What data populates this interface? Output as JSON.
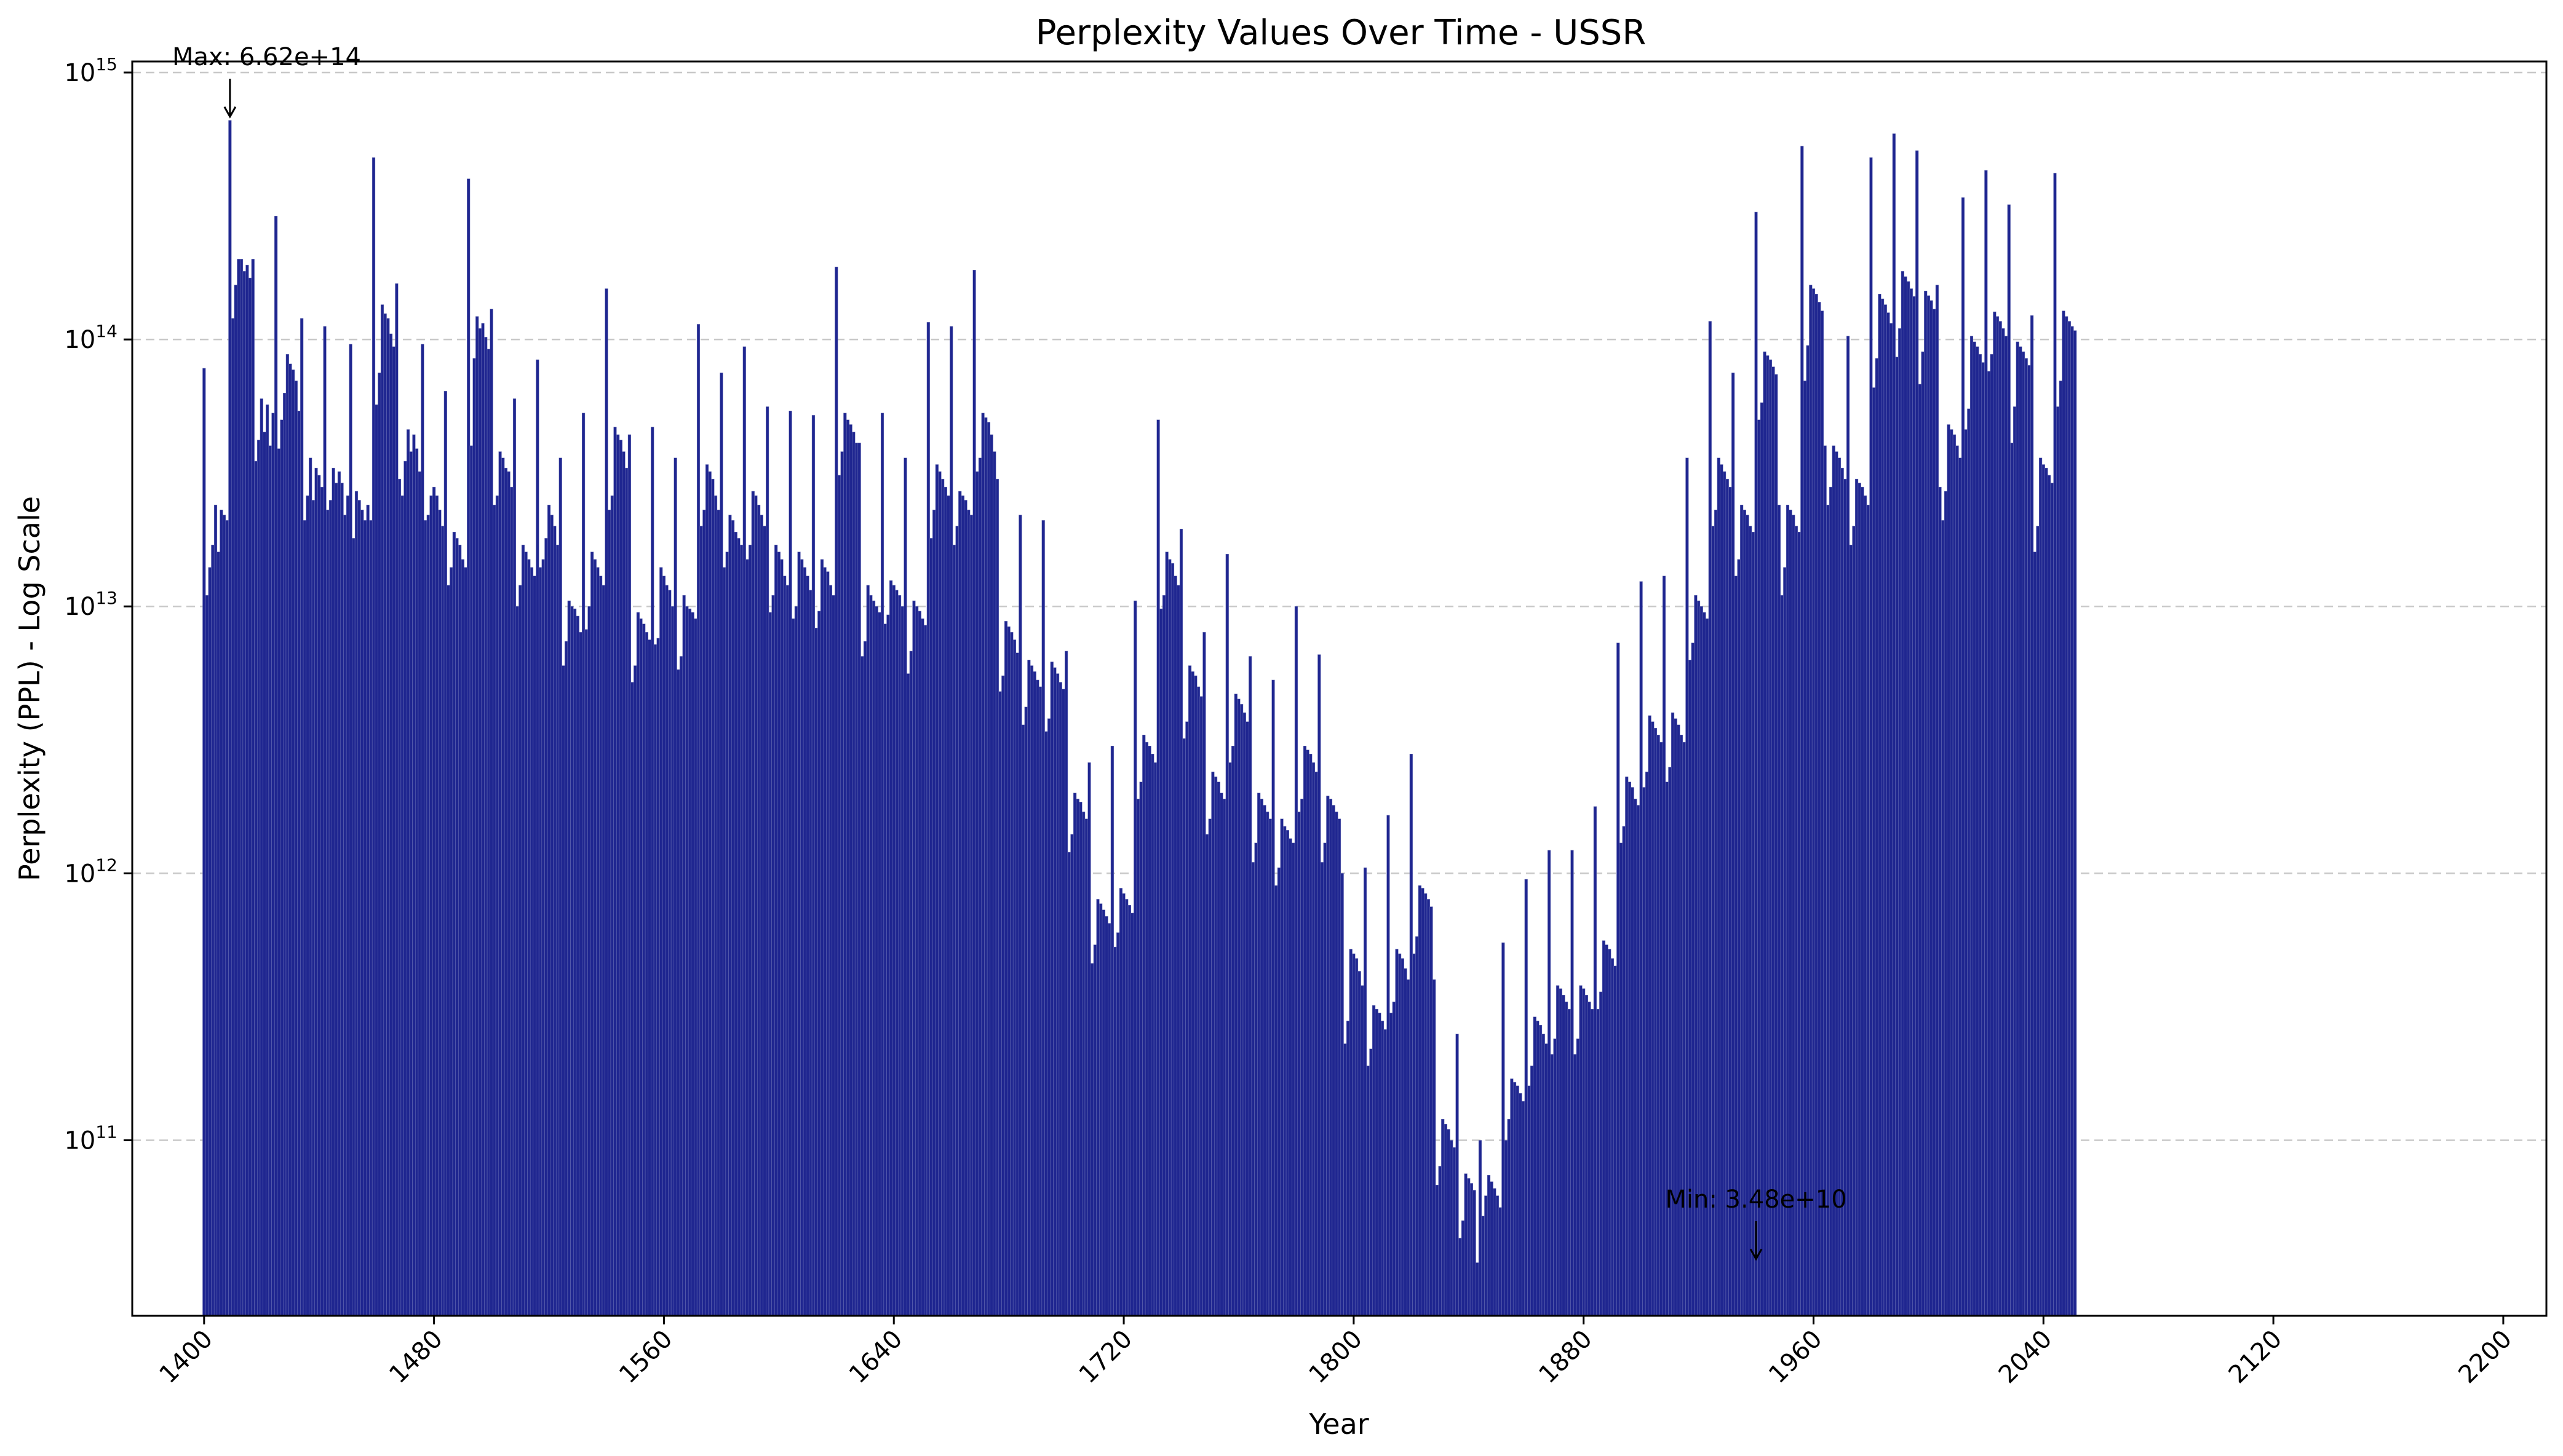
{
  "chart_data": {
    "type": "bar",
    "title": "Perplexity Values Over Time - USSR",
    "xlabel": "Year",
    "ylabel": "Perplexity (PPL) - Log Scale",
    "yscale": "log",
    "ylim": [
      22000000000.0,
      1100000000000000.0
    ],
    "xlim": [
      1375,
      2215
    ],
    "xticks": [
      1400,
      1480,
      1560,
      1640,
      1720,
      1800,
      1880,
      1960,
      2040,
      2120,
      2200
    ],
    "yticks": [
      {
        "value": 100000000000.0,
        "base": "10",
        "exp": "11"
      },
      {
        "value": 1000000000000.0,
        "base": "10",
        "exp": "12"
      },
      {
        "value": 10000000000000.0,
        "base": "10",
        "exp": "13"
      },
      {
        "value": 100000000000000.0,
        "base": "10",
        "exp": "14"
      },
      {
        "value": 1000000000000000.0,
        "base": "10",
        "exp": "15"
      }
    ],
    "grid": "y-dashed",
    "bar_color": "#1f2690",
    "x_start": 1400,
    "x_step": 1,
    "values": [
      78000000000000.0,
      11000000000000.0,
      14000000000000.0,
      17000000000000.0,
      24000000000000.0,
      16000000000000.0,
      23000000000000.0,
      22000000000000.0,
      21000000000000.0,
      662000000000000.0,
      120000000000000.0,
      160000000000000.0,
      200000000000000.0,
      200000000000000.0,
      180000000000000.0,
      190000000000000.0,
      170000000000000.0,
      200000000000000.0,
      35000000000000.0,
      42000000000000.0,
      60000000000000.0,
      45000000000000.0,
      57000000000000.0,
      40000000000000.0,
      53000000000000.0,
      290000000000000.0,
      39000000000000.0,
      50000000000000.0,
      63000000000000.0,
      88000000000000.0,
      81000000000000.0,
      77000000000000.0,
      70000000000000.0,
      54000000000000.0,
      120000000000000.0,
      21000000000000.0,
      26000000000000.0,
      36000000000000.0,
      25000000000000.0,
      33000000000000.0,
      31000000000000.0,
      28000000000000.0,
      112000000000000.0,
      23000000000000.0,
      25000000000000.0,
      33000000000000.0,
      29000000000000.0,
      32000000000000.0,
      29000000000000.0,
      22000000000000.0,
      26000000000000.0,
      96000000000000.0,
      18000000000000.0,
      27000000000000.0,
      25000000000000.0,
      23000000000000.0,
      21000000000000.0,
      24000000000000.0,
      21000000000000.0,
      480000000000000.0,
      57000000000000.0,
      75000000000000.0,
      135000000000000.0,
      125000000000000.0,
      120000000000000.0,
      105000000000000.0,
      94000000000000.0,
      162000000000000.0,
      30000000000000.0,
      26000000000000.0,
      35000000000000.0,
      46000000000000.0,
      38000000000000.0,
      44000000000000.0,
      39000000000000.0,
      32000000000000.0,
      96000000000000.0,
      21000000000000.0,
      22000000000000.0,
      26000000000000.0,
      28000000000000.0,
      26000000000000.0,
      23000000000000.0,
      20000000000000.0,
      64000000000000.0,
      12000000000000.0,
      14000000000000.0,
      19000000000000.0,
      18000000000000.0,
      17000000000000.0,
      15000000000000.0,
      14000000000000.0,
      400000000000000.0,
      40000000000000.0,
      85000000000000.0,
      122000000000000.0,
      110000000000000.0,
      115000000000000.0,
      102000000000000.0,
      92000000000000.0,
      130000000000000.0,
      24000000000000.0,
      26000000000000.0,
      38000000000000.0,
      36000000000000.0,
      33000000000000.0,
      32000000000000.0,
      28000000000000.0,
      60000000000000.0,
      10000000000000.0,
      12000000000000.0,
      17000000000000.0,
      16000000000000.0,
      15000000000000.0,
      14000000000000.0,
      13000000000000.0,
      84000000000000.0,
      14000000000000.0,
      15000000000000.0,
      18000000000000.0,
      24000000000000.0,
      22000000000000.0,
      20000000000000.0,
      17000000000000.0,
      36000000000000.0,
      6000000000000.0,
      7400000000000.0,
      10500000000000.0,
      10000000000000.0,
      9800000000000.0,
      9200000000000.0,
      8000000000000.0,
      53000000000000.0,
      8200000000000.0,
      10000000000000.0,
      16000000000000.0,
      15000000000000.0,
      14000000000000.0,
      13000000000000.0,
      12000000000000.0,
      155000000000000.0,
      23000000000000.0,
      26000000000000.0,
      47000000000000.0,
      44000000000000.0,
      42000000000000.0,
      38000000000000.0,
      33000000000000.0,
      44000000000000.0,
      5200000000000.0,
      6000000000000.0,
      9500000000000.0,
      9000000000000.0,
      8600000000000.0,
      8000000000000.0,
      7500000000000.0,
      47000000000000.0,
      7200000000000.0,
      7600000000000.0,
      14000000000000.0,
      13000000000000.0,
      12000000000000.0,
      11500000000000.0,
      10000000000000.0,
      36000000000000.0,
      5800000000000.0,
      6500000000000.0,
      11000000000000.0,
      10000000000000.0,
      9800000000000.0,
      9500000000000.0,
      9000000000000.0,
      114000000000000.0,
      20000000000000.0,
      23000000000000.0,
      34000000000000.0,
      32000000000000.0,
      30000000000000.0,
      26000000000000.0,
      23000000000000.0,
      75000000000000.0,
      14000000000000.0,
      16000000000000.0,
      22000000000000.0,
      21000000000000.0,
      19000000000000.0,
      18000000000000.0,
      17000000000000.0,
      94000000000000.0,
      15000000000000.0,
      17000000000000.0,
      27000000000000.0,
      26000000000000.0,
      24000000000000.0,
      22000000000000.0,
      20000000000000.0,
      56000000000000.0,
      9500000000000.0,
      11000000000000.0,
      17000000000000.0,
      16000000000000.0,
      15000000000000.0,
      13000000000000.0,
      12000000000000.0,
      54000000000000.0,
      9000000000000.0,
      10000000000000.0,
      16000000000000.0,
      15000000000000.0,
      14000000000000.0,
      13000000000000.0,
      11500000000000.0,
      52000000000000.0,
      8300000000000.0,
      9600000000000.0,
      15000000000000.0,
      14000000000000.0,
      13500000000000.0,
      12000000000000.0,
      11000000000000.0,
      187000000000000.0,
      31000000000000.0,
      38000000000000.0,
      53000000000000.0,
      50000000000000.0,
      48000000000000.0,
      45000000000000.0,
      41000000000000.0,
      41000000000000.0,
      6500000000000.0,
      7400000000000.0,
      12000000000000.0,
      11000000000000.0,
      10500000000000.0,
      10000000000000.0,
      9500000000000.0,
      53000000000000.0,
      8600000000000.0,
      9300000000000.0,
      12500000000000.0,
      12000000000000.0,
      11500000000000.0,
      11000000000000.0,
      10000000000000.0,
      36000000000000.0,
      5600000000000.0,
      6800000000000.0,
      10500000000000.0,
      10000000000000.0,
      9600000000000.0,
      9000000000000.0,
      8500000000000.0,
      116000000000000.0,
      18000000000000.0,
      23000000000000.0,
      34000000000000.0,
      32000000000000.0,
      30000000000000.0,
      28000000000000.0,
      26000000000000.0,
      112000000000000.0,
      17000000000000.0,
      20000000000000.0,
      27000000000000.0,
      26000000000000.0,
      25000000000000.0,
      23000000000000.0,
      22000000000000.0,
      182000000000000.0,
      32000000000000.0,
      36000000000000.0,
      53000000000000.0,
      51000000000000.0,
      49000000000000.0,
      44000000000000.0,
      38000000000000.0,
      30000000000000.0,
      4800000000000.0,
      5500000000000.0,
      8800000000000.0,
      8400000000000.0,
      8000000000000.0,
      7500000000000.0,
      6700000000000.0,
      22000000000000.0,
      3600000000000.0,
      4200000000000.0,
      6300000000000.0,
      6000000000000.0,
      5700000000000.0,
      5300000000000.0,
      5000000000000.0,
      21000000000000.0,
      3400000000000.0,
      3800000000000.0,
      6200000000000.0,
      5900000000000.0,
      5600000000000.0,
      5200000000000.0,
      4900000000000.0,
      6800000000000.0,
      1200000000000.0,
      1400000000000.0,
      2000000000000.0,
      1900000000000.0,
      1850000000000.0,
      1700000000000.0,
      1600000000000.0,
      2600000000000.0,
      460000000000.0,
      540000000000.0,
      800000000000.0,
      770000000000.0,
      730000000000.0,
      690000000000.0,
      650000000000.0,
      3000000000000.0,
      530000000000.0,
      600000000000.0,
      880000000000.0,
      840000000000.0,
      800000000000.0,
      760000000000.0,
      710000000000.0,
      10500000000000.0,
      1900000000000.0,
      2200000000000.0,
      3300000000000.0,
      3100000000000.0,
      3000000000000.0,
      2800000000000.0,
      2600000000000.0,
      50000000000000.0,
      9800000000000.0,
      11000000000000.0,
      16000000000000.0,
      15000000000000.0,
      14500000000000.0,
      13000000000000.0,
      12000000000000.0,
      19500000000000.0,
      3200000000000.0,
      3700000000000.0,
      6000000000000.0,
      5700000000000.0,
      5500000000000.0,
      5000000000000.0,
      4600000000000.0,
      8000000000000.0,
      1400000000000.0,
      1600000000000.0,
      2400000000000.0,
      2300000000000.0,
      2200000000000.0,
      2000000000000.0,
      1900000000000.0,
      15700000000000.0,
      2600000000000.0,
      3000000000000.0,
      4700000000000.0,
      4500000000000.0,
      4300000000000.0,
      4000000000000.0,
      3700000000000.0,
      6500000000000.0,
      1100000000000.0,
      1300000000000.0,
      2000000000000.0,
      1900000000000.0,
      1800000000000.0,
      1700000000000.0,
      1600000000000.0,
      5300000000000.0,
      900000000000.0,
      1050000000000.0,
      1600000000000.0,
      1500000000000.0,
      1450000000000.0,
      1350000000000.0,
      1300000000000.0,
      10000000000000.0,
      1700000000000.0,
      1900000000000.0,
      3000000000000.0,
      2900000000000.0,
      2800000000000.0,
      2600000000000.0,
      2400000000000.0,
      6600000000000.0,
      1100000000000.0,
      1300000000000.0,
      1950000000000.0,
      1900000000000.0,
      1800000000000.0,
      1700000000000.0,
      1600000000000.0,
      1000000000000.0,
      230000000000.0,
      280000000000.0,
      520000000000.0,
      500000000000.0,
      480000000000.0,
      430000000000.0,
      380000000000.0,
      1050000000000.0,
      190000000000.0,
      220000000000.0,
      320000000000.0,
      310000000000.0,
      300000000000.0,
      280000000000.0,
      260000000000.0,
      1650000000000.0,
      300000000000.0,
      330000000000.0,
      520000000000.0,
      500000000000.0,
      480000000000.0,
      440000000000.0,
      400000000000.0,
      2800000000000.0,
      500000000000.0,
      580000000000.0,
      900000000000.0,
      880000000000.0,
      840000000000.0,
      800000000000.0,
      750000000000.0,
      400000000000.0,
      68000000000.0,
      80000000000.0,
      120000000000.0,
      115000000000.0,
      110000000000.0,
      100000000000.0,
      94000000000.0,
      250000000000.0,
      43000000000.0,
      50000000000.0,
      75000000000.0,
      72000000000.0,
      69000000000.0,
      65000000000.0,
      34800000000.0,
      100000000000.0,
      52000000000.0,
      62000000000.0,
      74000000000.0,
      70000000000.0,
      66000000000.0,
      62000000000.0,
      56000000000.0,
      550000000000.0,
      100000000000.0,
      120000000000.0,
      170000000000.0,
      165000000000.0,
      160000000000.0,
      150000000000.0,
      140000000000.0,
      950000000000.0,
      160000000000.0,
      190000000000.0,
      290000000000.0,
      280000000000.0,
      270000000000.0,
      250000000000.0,
      230000000000.0,
      1220000000000.0,
      210000000000.0,
      240000000000.0,
      380000000000.0,
      370000000000.0,
      350000000000.0,
      330000000000.0,
      310000000000.0,
      1220000000000.0,
      210000000000.0,
      240000000000.0,
      380000000000.0,
      370000000000.0,
      350000000000.0,
      330000000000.0,
      310000000000.0,
      1780000000000.0,
      310000000000.0,
      360000000000.0,
      560000000000.0,
      540000000000.0,
      520000000000.0,
      480000000000.0,
      450000000000.0,
      7300000000000.0,
      1300000000000.0,
      1500000000000.0,
      2300000000000.0,
      2200000000000.0,
      2100000000000.0,
      1900000000000.0,
      1800000000000.0,
      12400000000000.0,
      2100000000000.0,
      2400000000000.0,
      3900000000000.0,
      3700000000000.0,
      3500000000000.0,
      3300000000000.0,
      3100000000000.0,
      13000000000000.0,
      2200000000000.0,
      2500000000000.0,
      4000000000000.0,
      3800000000000.0,
      3600000000000.0,
      3300000000000.0,
      3100000000000.0,
      36000000000000.0,
      6300000000000.0,
      7300000000000.0,
      11000000000000.0,
      10500000000000.0,
      10000000000000.0,
      9500000000000.0,
      9000000000000.0,
      117000000000000.0,
      20000000000000.0,
      23000000000000.0,
      36000000000000.0,
      34000000000000.0,
      32000000000000.0,
      30000000000000.0,
      28000000000000.0,
      75000000000000.0,
      13000000000000.0,
      15000000000000.0,
      24000000000000.0,
      23000000000000.0,
      22000000000000.0,
      20000000000000.0,
      19000000000000.0,
      300000000000000.0,
      50000000000000.0,
      58000000000000.0,
      90000000000000.0,
      87000000000000.0,
      84000000000000.0,
      79000000000000.0,
      74000000000000.0,
      24000000000000.0,
      11000000000000.0,
      14000000000000.0,
      24000000000000.0,
      23000000000000.0,
      22000000000000.0,
      20000000000000.0,
      19000000000000.0,
      530000000000000.0,
      70000000000000.0,
      95000000000000.0,
      160000000000000.0,
      155000000000000.0,
      148000000000000.0,
      138000000000000.0,
      128000000000000.0,
      40000000000000.0,
      24000000000000.0,
      28000000000000.0,
      40000000000000.0,
      38000000000000.0,
      36000000000000.0,
      33000000000000.0,
      30000000000000.0,
      103000000000000.0,
      17000000000000.0,
      20000000000000.0,
      30000000000000.0,
      29000000000000.0,
      28000000000000.0,
      26000000000000.0,
      24000000000000.0,
      480000000000000.0,
      66000000000000.0,
      85000000000000.0,
      148000000000000.0,
      142000000000000.0,
      135000000000000.0,
      126000000000000.0,
      115000000000000.0,
      590000000000000.0,
      86000000000000.0,
      110000000000000.0,
      180000000000000.0,
      172000000000000.0,
      165000000000000.0,
      155000000000000.0,
      145000000000000.0,
      510000000000000.0,
      68000000000000.0,
      90000000000000.0,
      152000000000000.0,
      146000000000000.0,
      140000000000000.0,
      130000000000000.0,
      160000000000000.0,
      28000000000000.0,
      21000000000000.0,
      27000000000000.0,
      48000000000000.0,
      46000000000000.0,
      44000000000000.0,
      40000000000000.0,
      36000000000000.0,
      340000000000000.0,
      46000000000000.0,
      55000000000000.0,
      103000000000000.0,
      98000000000000.0,
      94000000000000.0,
      88000000000000.0,
      82000000000000.0,
      430000000000000.0,
      76000000000000.0,
      88000000000000.0,
      127000000000000.0,
      122000000000000.0,
      117000000000000.0,
      110000000000000.0,
      103000000000000.0,
      320000000000000.0,
      41000000000000.0,
      56000000000000.0,
      98000000000000.0,
      94000000000000.0,
      90000000000000.0,
      85000000000000.0,
      80000000000000.0,
      123000000000000.0,
      16000000000000.0,
      20000000000000.0,
      36000000000000.0,
      34000000000000.0,
      33000000000000.0,
      31000000000000.0,
      29000000000000.0,
      420000000000000.0,
      56000000000000.0,
      70000000000000.0,
      128000000000000.0,
      122000000000000.0,
      117000000000000.0,
      112000000000000.0,
      108000000000000.0
    ],
    "annotations": [
      {
        "text": "Max: 6.62e+14",
        "year": 1409,
        "value": 662000000000000.0
      },
      {
        "text": "Min: 3.48e+10",
        "year": 1940,
        "value": 34800000000.0
      }
    ]
  }
}
